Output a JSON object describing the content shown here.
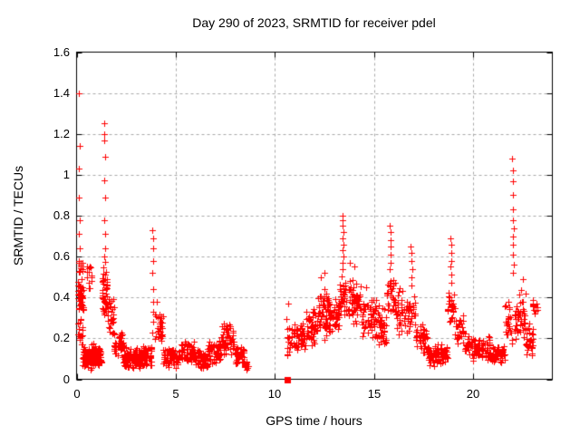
{
  "chart_data": {
    "type": "scatter",
    "title": "Day 290 of 2023, SRMTID for receiver pdel",
    "xlabel": "GPS time / hours",
    "ylabel": "SRMTID / TECUs",
    "xlim": [
      0,
      24
    ],
    "ylim": [
      0,
      1.6
    ],
    "xtick_values": [
      0,
      5,
      10,
      15,
      20
    ],
    "xtick_labels": [
      "0",
      "5",
      "10",
      "15",
      "20"
    ],
    "ytick_values": [
      0,
      0.2,
      0.4,
      0.6,
      0.8,
      1,
      1.2,
      1.4,
      1.6
    ],
    "ytick_labels": [
      "0",
      "0.2",
      "0.4",
      "0.6",
      "0.8",
      "1",
      "1.2",
      "1.4",
      "1.6"
    ],
    "grid": true,
    "legend": "none",
    "marker": "plus",
    "marker_color": "#ff0000",
    "grid_color": "#a8a8a8",
    "axis_color": "#000000",
    "data_gap_hours": [
      8.68,
      10.58
    ],
    "special_points": [
      {
        "x": 10.63,
        "y": 0.0,
        "marker": "filled-square",
        "color": "#ff0000"
      }
    ],
    "spike_points": [
      [
        0.12,
        1.4
      ],
      [
        0.14,
        1.14
      ],
      [
        0.13,
        1.03
      ],
      [
        0.12,
        0.89
      ],
      [
        0.15,
        0.78
      ],
      [
        0.13,
        0.71
      ],
      [
        0.14,
        0.64
      ],
      [
        0.11,
        0.58
      ],
      [
        0.16,
        0.53
      ],
      [
        1.38,
        1.25
      ],
      [
        1.41,
        1.2
      ],
      [
        1.39,
        1.17
      ],
      [
        1.42,
        1.09
      ],
      [
        1.4,
        0.975
      ],
      [
        1.43,
        0.89
      ],
      [
        1.39,
        0.78
      ],
      [
        1.42,
        0.71
      ],
      [
        1.44,
        0.64
      ],
      [
        1.4,
        0.6
      ],
      [
        3.82,
        0.73
      ],
      [
        3.85,
        0.69
      ],
      [
        3.84,
        0.64
      ],
      [
        3.86,
        0.58
      ],
      [
        3.83,
        0.52
      ],
      [
        3.86,
        0.44
      ],
      [
        3.84,
        0.38
      ],
      [
        3.87,
        0.33
      ],
      [
        3.85,
        0.28
      ],
      [
        3.83,
        0.23
      ],
      [
        13.4,
        0.8
      ],
      [
        13.44,
        0.78
      ],
      [
        13.42,
        0.75
      ],
      [
        13.46,
        0.72
      ],
      [
        13.43,
        0.69
      ],
      [
        13.45,
        0.66
      ],
      [
        13.41,
        0.63
      ],
      [
        13.47,
        0.6
      ],
      [
        13.44,
        0.57
      ],
      [
        13.42,
        0.54
      ],
      [
        15.8,
        0.75
      ],
      [
        15.84,
        0.72
      ],
      [
        15.82,
        0.68
      ],
      [
        15.86,
        0.65
      ],
      [
        15.83,
        0.61
      ],
      [
        15.85,
        0.57
      ],
      [
        15.81,
        0.54
      ],
      [
        16.86,
        0.65
      ],
      [
        16.9,
        0.62
      ],
      [
        16.88,
        0.58
      ],
      [
        16.92,
        0.54
      ],
      [
        16.89,
        0.5
      ],
      [
        16.91,
        0.46
      ],
      [
        18.86,
        0.69
      ],
      [
        18.9,
        0.66
      ],
      [
        18.88,
        0.62
      ],
      [
        18.92,
        0.58
      ],
      [
        18.87,
        0.55
      ],
      [
        18.91,
        0.51
      ],
      [
        18.89,
        0.47
      ],
      [
        21.98,
        1.08
      ],
      [
        22.02,
        1.02
      ],
      [
        22.0,
        0.97
      ],
      [
        22.03,
        0.9
      ],
      [
        21.99,
        0.83
      ],
      [
        22.02,
        0.78
      ],
      [
        22.04,
        0.74
      ],
      [
        22.0,
        0.7
      ],
      [
        22.03,
        0.66
      ],
      [
        22.01,
        0.61
      ],
      [
        22.05,
        0.56
      ],
      [
        21.99,
        0.52
      ],
      [
        0.62,
        0.47
      ],
      [
        12.32,
        0.5
      ],
      [
        12.48,
        0.52
      ],
      [
        13.78,
        0.57
      ],
      [
        14.02,
        0.55
      ],
      [
        14.62,
        0.45
      ],
      [
        22.5,
        0.49
      ],
      [
        10.68,
        0.37
      ],
      [
        4.05,
        0.38
      ]
    ],
    "density_bands": [
      [
        0.05,
        0.32,
        0.16,
        0.3,
        18
      ],
      [
        0.05,
        0.35,
        0.3,
        0.5,
        38
      ],
      [
        0.08,
        0.3,
        0.5,
        0.6,
        10
      ],
      [
        0.3,
        0.78,
        0.04,
        0.18,
        65
      ],
      [
        0.5,
        0.75,
        0.42,
        0.58,
        12
      ],
      [
        0.78,
        1.28,
        0.06,
        0.18,
        70
      ],
      [
        1.28,
        1.58,
        0.3,
        0.58,
        40
      ],
      [
        1.55,
        1.88,
        0.2,
        0.42,
        28
      ],
      [
        1.88,
        2.35,
        0.1,
        0.24,
        50
      ],
      [
        2.35,
        3.35,
        0.04,
        0.16,
        115
      ],
      [
        3.35,
        3.78,
        0.06,
        0.18,
        45
      ],
      [
        3.9,
        4.35,
        0.17,
        0.35,
        30
      ],
      [
        4.35,
        5.2,
        0.05,
        0.16,
        75
      ],
      [
        5.2,
        5.95,
        0.07,
        0.2,
        60
      ],
      [
        5.95,
        6.6,
        0.04,
        0.15,
        60
      ],
      [
        6.6,
        7.25,
        0.07,
        0.2,
        55
      ],
      [
        7.25,
        7.95,
        0.1,
        0.28,
        55
      ],
      [
        7.95,
        8.45,
        0.06,
        0.17,
        40
      ],
      [
        8.45,
        8.68,
        0.03,
        0.11,
        14
      ],
      [
        10.58,
        10.95,
        0.05,
        0.37,
        20
      ],
      [
        10.95,
        11.55,
        0.12,
        0.3,
        45
      ],
      [
        11.55,
        12.15,
        0.15,
        0.35,
        50
      ],
      [
        12.15,
        12.75,
        0.18,
        0.46,
        55
      ],
      [
        12.75,
        13.25,
        0.2,
        0.42,
        45
      ],
      [
        13.25,
        13.62,
        0.3,
        0.52,
        30
      ],
      [
        13.62,
        14.35,
        0.25,
        0.52,
        60
      ],
      [
        14.35,
        15.15,
        0.18,
        0.42,
        60
      ],
      [
        15.15,
        15.65,
        0.15,
        0.38,
        40
      ],
      [
        15.65,
        16.1,
        0.28,
        0.52,
        35
      ],
      [
        16.1,
        16.6,
        0.2,
        0.45,
        35
      ],
      [
        16.6,
        17.1,
        0.22,
        0.42,
        30
      ],
      [
        17.1,
        17.7,
        0.12,
        0.28,
        45
      ],
      [
        17.7,
        18.7,
        0.06,
        0.18,
        90
      ],
      [
        18.7,
        19.1,
        0.25,
        0.45,
        25
      ],
      [
        19.1,
        19.6,
        0.15,
        0.32,
        30
      ],
      [
        19.6,
        20.9,
        0.08,
        0.22,
        90
      ],
      [
        20.9,
        21.6,
        0.06,
        0.18,
        60
      ],
      [
        21.6,
        21.98,
        0.15,
        0.4,
        25
      ],
      [
        22.05,
        22.65,
        0.15,
        0.47,
        45
      ],
      [
        22.65,
        23.05,
        0.1,
        0.3,
        30
      ],
      [
        23.0,
        23.25,
        0.25,
        0.45,
        12
      ]
    ],
    "seed": 1234
  }
}
